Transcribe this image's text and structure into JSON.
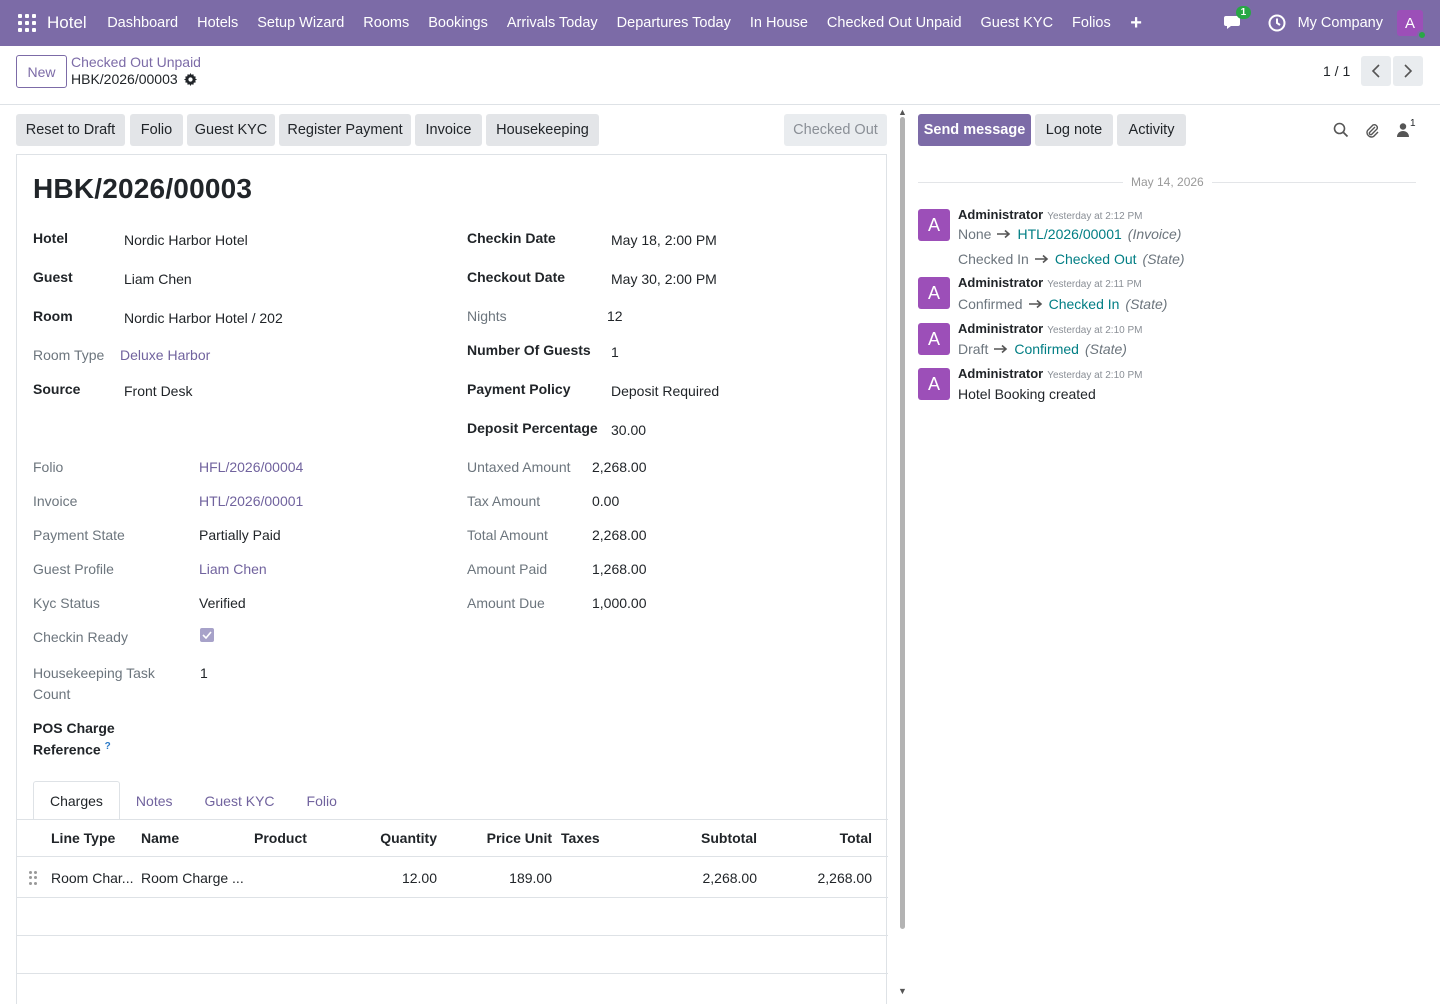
{
  "navbar": {
    "brand": "Hotel",
    "menu": [
      "Dashboard",
      "Hotels",
      "Setup Wizard",
      "Rooms",
      "Bookings",
      "Arrivals Today",
      "Departures Today",
      "In House",
      "Checked Out Unpaid",
      "Guest KYC",
      "Folios"
    ],
    "plus": "+",
    "chat_badge": "1",
    "company": "My Company",
    "avatar": "A",
    "accent": "#7c6ba7"
  },
  "control": {
    "new_label": "New",
    "breadcrumb": "Checked Out Unpaid",
    "record": "HBK/2026/00003",
    "pager": "1 / 1"
  },
  "statusbar": {
    "buttons": [
      "Reset to Draft",
      "Folio",
      "Guest KYC",
      "Register Payment",
      "Invoice",
      "Housekeeping"
    ],
    "state": "Checked Out"
  },
  "form": {
    "title": "HBK/2026/00003",
    "left_top": [
      {
        "label": "Hotel",
        "value": "Nordic Harbor Hotel"
      },
      {
        "label": "Guest",
        "value": "Liam Chen"
      },
      {
        "label": "Room",
        "value": "Nordic Harbor Hotel / 202"
      },
      {
        "label": "Room Type",
        "value": "Deluxe Harbor"
      },
      {
        "label": "Source",
        "value": "Front Desk"
      }
    ],
    "right_top": [
      {
        "label": "Checkin Date",
        "value": "May 18, 2:00 PM"
      },
      {
        "label": "Checkout Date",
        "value": "May 30, 2:00 PM"
      },
      {
        "label": "Nights",
        "value": "12"
      },
      {
        "label": "Number Of Guests",
        "value": "1"
      },
      {
        "label": "Payment Policy",
        "value": "Deposit Required"
      },
      {
        "label": "Deposit Percentage",
        "value": "30.00"
      }
    ],
    "left_bottom": [
      {
        "label": "Folio",
        "value": "HFL/2026/00004"
      },
      {
        "label": "Invoice",
        "value": "HTL/2026/00001"
      },
      {
        "label": "Payment State",
        "value": "Partially Paid"
      },
      {
        "label": "Guest Profile",
        "value": "Liam Chen"
      },
      {
        "label": "Kyc Status",
        "value": "Verified"
      },
      {
        "label": "Checkin Ready",
        "value": ""
      },
      {
        "label_1": "Housekeeping Task",
        "label_2": "Count",
        "value": "1"
      },
      {
        "label_1": "POS Charge",
        "label_2": "Reference",
        "help": "?"
      }
    ],
    "checkin_ready": true,
    "right_bottom": [
      {
        "label": "Untaxed Amount",
        "value": "2,268.00"
      },
      {
        "label": "Tax Amount",
        "value": "0.00"
      },
      {
        "label": "Total Amount",
        "value": "2,268.00"
      },
      {
        "label": "Amount Paid",
        "value": "1,268.00"
      },
      {
        "label": "Amount Due",
        "value": "1,000.00"
      }
    ]
  },
  "tabs": [
    "Charges",
    "Notes",
    "Guest KYC",
    "Folio"
  ],
  "table": {
    "columns": [
      "Line Type",
      "Name",
      "Product",
      "Quantity",
      "Price Unit",
      "Taxes",
      "Subtotal",
      "Total"
    ],
    "rows": [
      [
        "Room Char...",
        "Room Charge ...",
        "",
        "12.00",
        "189.00",
        "",
        "2,268.00",
        "2,268.00"
      ]
    ]
  },
  "chatter": {
    "send_message": "Send message",
    "log_note": "Log note",
    "activity": "Activity",
    "followers": "1",
    "date": "May 14, 2026",
    "messages": [
      {
        "avatar": "A",
        "author": "Administrator",
        "time": "Yesterday at 2:12 PM",
        "lines": [
          {
            "from": "None",
            "to": "HTL/2026/00001",
            "field": "(Invoice)"
          },
          {
            "from": "Checked In",
            "to": "Checked Out",
            "field": "(State)"
          }
        ]
      },
      {
        "avatar": "A",
        "author": "Administrator",
        "time": "Yesterday at 2:11 PM",
        "lines": [
          {
            "from": "Confirmed",
            "to": "Checked In",
            "field": "(State)"
          }
        ]
      },
      {
        "avatar": "A",
        "author": "Administrator",
        "time": "Yesterday at 2:10 PM",
        "lines": [
          {
            "from": "Draft",
            "to": "Confirmed",
            "field": "(State)"
          }
        ]
      },
      {
        "avatar": "A",
        "author": "Administrator",
        "time": "Yesterday at 2:10 PM",
        "body": "Hotel Booking created"
      }
    ]
  }
}
